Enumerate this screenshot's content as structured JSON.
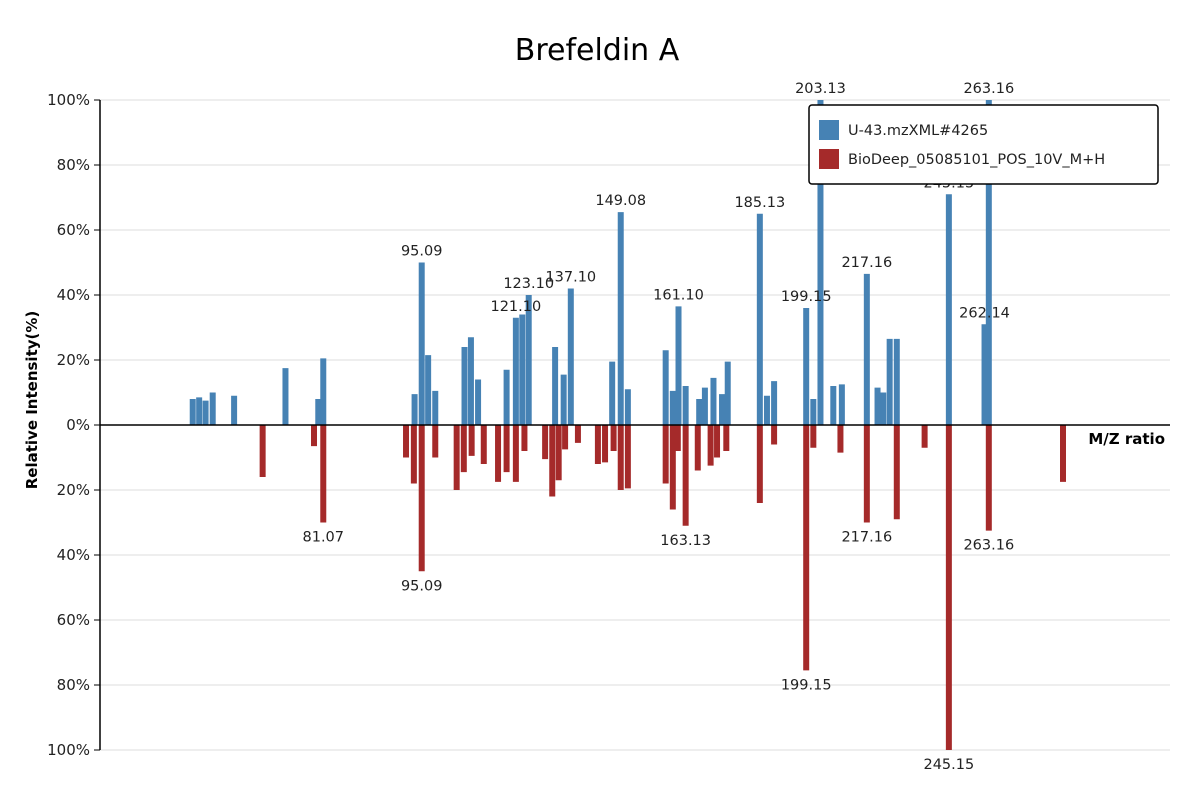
{
  "chart_data": {
    "type": "bar",
    "title": "Brefeldin A",
    "xlabel": "M/Z ratio",
    "ylabel": "Relative Intensity(%)",
    "y_ticks": [
      "100%",
      "80%",
      "60%",
      "40%",
      "20%",
      "0%",
      "20%",
      "40%",
      "60%",
      "80%",
      "100%"
    ],
    "grid": true,
    "legend_position": "top-right",
    "colors": {
      "sample": "#4682b4",
      "reference": "#a52a2a"
    },
    "series": [
      {
        "name": "U-43.mzXML#4265",
        "direction": "up",
        "peaks": [
          {
            "x": 63.0,
            "v": 8
          },
          {
            "x": 63.9,
            "v": 8.5
          },
          {
            "x": 64.8,
            "v": 7.5
          },
          {
            "x": 65.8,
            "v": 10
          },
          {
            "x": 68.8,
            "v": 9
          },
          {
            "x": 76.0,
            "v": 17.5
          },
          {
            "x": 80.6,
            "v": 8
          },
          {
            "x": 81.3,
            "v": 20.5
          },
          {
            "x": 94.1,
            "v": 9.5
          },
          {
            "x": 95.1,
            "v": 50,
            "label": "95.09"
          },
          {
            "x": 96.0,
            "v": 21.5
          },
          {
            "x": 97.0,
            "v": 10.5
          },
          {
            "x": 101.1,
            "v": 24
          },
          {
            "x": 102.0,
            "v": 27
          },
          {
            "x": 103.0,
            "v": 14
          },
          {
            "x": 107.0,
            "v": 17
          },
          {
            "x": 108.3,
            "v": 33,
            "label": "121.10"
          },
          {
            "x": 109.2,
            "v": 34
          },
          {
            "x": 110.1,
            "v": 40,
            "label": "123.10"
          },
          {
            "x": 113.8,
            "v": 24
          },
          {
            "x": 115.0,
            "v": 15.5
          },
          {
            "x": 116.0,
            "v": 42,
            "label": "137.10"
          },
          {
            "x": 121.8,
            "v": 19.5
          },
          {
            "x": 123.0,
            "v": 65.5,
            "label": "149.08"
          },
          {
            "x": 124.0,
            "v": 11
          },
          {
            "x": 129.3,
            "v": 23
          },
          {
            "x": 130.3,
            "v": 10.5
          },
          {
            "x": 131.1,
            "v": 36.5,
            "label": "161.10"
          },
          {
            "x": 132.1,
            "v": 12
          },
          {
            "x": 134.0,
            "v": 8
          },
          {
            "x": 134.8,
            "v": 11.5
          },
          {
            "x": 136.0,
            "v": 14.5
          },
          {
            "x": 137.2,
            "v": 9.5
          },
          {
            "x": 138.0,
            "v": 19.5
          },
          {
            "x": 142.5,
            "v": 65,
            "label": "185.13"
          },
          {
            "x": 143.5,
            "v": 9
          },
          {
            "x": 144.5,
            "v": 13.5
          },
          {
            "x": 149.0,
            "v": 36,
            "label": "199.15"
          },
          {
            "x": 150.0,
            "v": 8
          },
          {
            "x": 151.0,
            "v": 100,
            "label": "203.13"
          },
          {
            "x": 152.8,
            "v": 12
          },
          {
            "x": 154.0,
            "v": 12.5
          },
          {
            "x": 157.5,
            "v": 46.5,
            "label": "217.16"
          },
          {
            "x": 159.0,
            "v": 11.5
          },
          {
            "x": 159.8,
            "v": 10
          },
          {
            "x": 160.7,
            "v": 26.5
          },
          {
            "x": 161.7,
            "v": 26.5
          },
          {
            "x": 169.0,
            "v": 71,
            "label": "245.15"
          },
          {
            "x": 174.0,
            "v": 31,
            "label": "262.14"
          },
          {
            "x": 174.6,
            "v": 100,
            "label": "263.16"
          }
        ]
      },
      {
        "name": "BioDeep_05085101_POS_10V_M+H",
        "direction": "down",
        "peaks": [
          {
            "x": 72.8,
            "v": 16
          },
          {
            "x": 80.0,
            "v": 6.5
          },
          {
            "x": 81.3,
            "v": 30,
            "label": "81.07"
          },
          {
            "x": 92.9,
            "v": 10
          },
          {
            "x": 94.0,
            "v": 18
          },
          {
            "x": 95.1,
            "v": 45,
            "label": "95.09"
          },
          {
            "x": 97.0,
            "v": 10
          },
          {
            "x": 100.0,
            "v": 20
          },
          {
            "x": 101.0,
            "v": 14.5
          },
          {
            "x": 102.1,
            "v": 9.5
          },
          {
            "x": 103.8,
            "v": 12
          },
          {
            "x": 105.8,
            "v": 17.5
          },
          {
            "x": 107.0,
            "v": 14.5
          },
          {
            "x": 108.3,
            "v": 17.5
          },
          {
            "x": 109.5,
            "v": 8
          },
          {
            "x": 112.4,
            "v": 10.5
          },
          {
            "x": 113.4,
            "v": 22
          },
          {
            "x": 114.3,
            "v": 17
          },
          {
            "x": 115.2,
            "v": 7.5
          },
          {
            "x": 117.0,
            "v": 5.5
          },
          {
            "x": 119.8,
            "v": 12
          },
          {
            "x": 120.8,
            "v": 11.5
          },
          {
            "x": 122.0,
            "v": 8
          },
          {
            "x": 123.0,
            "v": 20
          },
          {
            "x": 124.0,
            "v": 19.5
          },
          {
            "x": 129.3,
            "v": 18
          },
          {
            "x": 130.3,
            "v": 26
          },
          {
            "x": 131.0,
            "v": 8
          },
          {
            "x": 132.1,
            "v": 31,
            "label": "163.13"
          },
          {
            "x": 133.8,
            "v": 14
          },
          {
            "x": 135.6,
            "v": 12.5
          },
          {
            "x": 136.5,
            "v": 10
          },
          {
            "x": 137.8,
            "v": 8
          },
          {
            "x": 142.5,
            "v": 24
          },
          {
            "x": 144.5,
            "v": 6
          },
          {
            "x": 149.0,
            "v": 75.5,
            "label": "199.15"
          },
          {
            "x": 150.0,
            "v": 7
          },
          {
            "x": 153.8,
            "v": 8.5
          },
          {
            "x": 157.5,
            "v": 30,
            "label": "217.16"
          },
          {
            "x": 161.7,
            "v": 29
          },
          {
            "x": 165.6,
            "v": 7
          },
          {
            "x": 169.0,
            "v": 100,
            "label": "245.15"
          },
          {
            "x": 174.6,
            "v": 32.5,
            "label": "263.16"
          },
          {
            "x": 185.0,
            "v": 17.5
          }
        ]
      }
    ]
  }
}
